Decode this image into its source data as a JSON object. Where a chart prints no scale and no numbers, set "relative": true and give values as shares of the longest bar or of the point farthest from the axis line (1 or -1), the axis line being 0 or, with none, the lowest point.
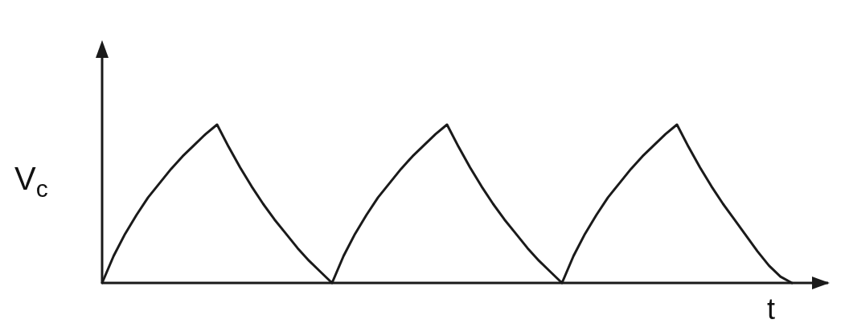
{
  "chart_data": {
    "type": "line",
    "xlabel": "t",
    "ylabel": "V$_{c}$",
    "relative": true,
    "grid": false,
    "legend": false,
    "marker": "none",
    "line_style": "solid",
    "categories": [
      null,
      null,
      null,
      null,
      null,
      null,
      null,
      null,
      null,
      null,
      null,
      null,
      null,
      null,
      null,
      null,
      null,
      null,
      null,
      null,
      null,
      null,
      null,
      null,
      null,
      null,
      null,
      null,
      null,
      null,
      null,
      null,
      null,
      null,
      null,
      null,
      null,
      null,
      null,
      null,
      null,
      null,
      null,
      null,
      null,
      null,
      null,
      null,
      null,
      null,
      null,
      null,
      null,
      null,
      null,
      null,
      null,
      null,
      null,
      null,
      null
    ],
    "series": [
      {
        "color": "#1a1a1a",
        "values": [
          0,
          0.17,
          0.31,
          0.43,
          0.54,
          0.63,
          0.72,
          0.8,
          0.87,
          0.94,
          1,
          0.86,
          0.73,
          0.61,
          0.5,
          0.4,
          0.31,
          0.22,
          0.14,
          0.07,
          0,
          0.17,
          0.31,
          0.43,
          0.54,
          0.63,
          0.72,
          0.8,
          0.87,
          0.94,
          1,
          0.86,
          0.73,
          0.61,
          0.5,
          0.4,
          0.31,
          0.22,
          0.14,
          0.07,
          0,
          0.17,
          0.31,
          0.43,
          0.54,
          0.63,
          0.72,
          0.8,
          0.87,
          0.94,
          1,
          0.86,
          0.73,
          0.61,
          0.5,
          0.4,
          0.3,
          0.2,
          0.11,
          0.04,
          0
        ]
      }
    ]
  }
}
